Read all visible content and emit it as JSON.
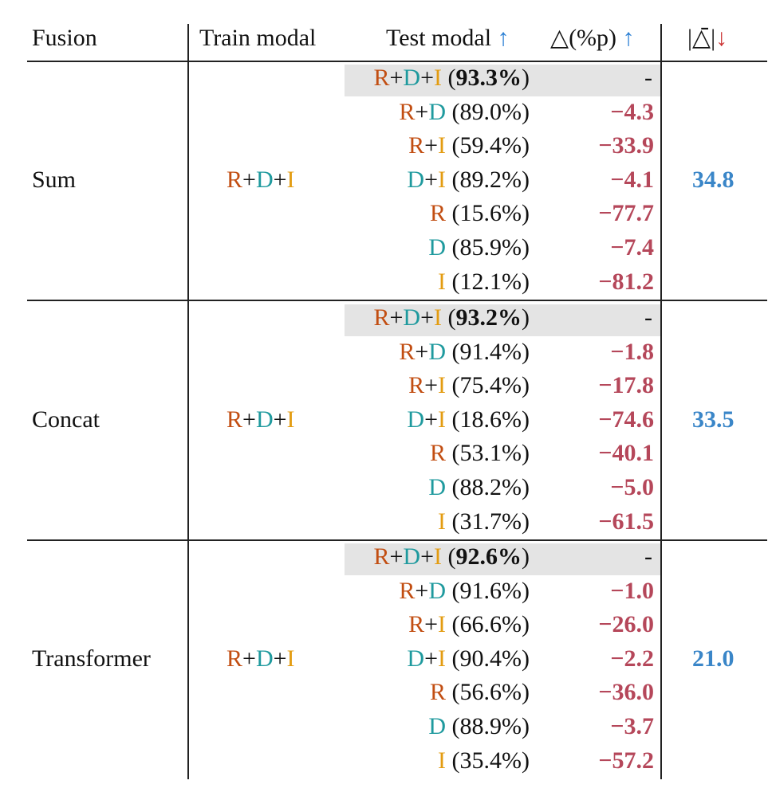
{
  "header": {
    "fusion": "Fusion",
    "train": "Train modal",
    "test": "Test modal",
    "test_arrow": "↑",
    "delta": "△(%p)",
    "delta_arrow": "↑",
    "avg": "|△̄|",
    "avg_arrow": "↓"
  },
  "colors": {
    "R": "#c24e12",
    "D": "#1f9a9e",
    "I": "#e39c11",
    "delta": "#b5475a",
    "avg": "#3a86c8"
  },
  "groups": [
    {
      "fusion": "Sum",
      "train": "R+D+I",
      "avg": "34.8",
      "rows": [
        {
          "modal": "R+D+I",
          "acc": "93.3%",
          "delta": "-"
        },
        {
          "modal": "R+D",
          "acc": "89.0%",
          "delta": "−4.3"
        },
        {
          "modal": "R+I",
          "acc": "59.4%",
          "delta": "−33.9"
        },
        {
          "modal": "D+I",
          "acc": "89.2%",
          "delta": "−4.1"
        },
        {
          "modal": "R",
          "acc": "15.6%",
          "delta": "−77.7"
        },
        {
          "modal": "D",
          "acc": "85.9%",
          "delta": "−7.4"
        },
        {
          "modal": "I",
          "acc": "12.1%",
          "delta": "−81.2"
        }
      ]
    },
    {
      "fusion": "Concat",
      "train": "R+D+I",
      "avg": "33.5",
      "rows": [
        {
          "modal": "R+D+I",
          "acc": "93.2%",
          "delta": "-"
        },
        {
          "modal": "R+D",
          "acc": "91.4%",
          "delta": "−1.8"
        },
        {
          "modal": "R+I",
          "acc": "75.4%",
          "delta": "−17.8"
        },
        {
          "modal": "D+I",
          "acc": "18.6%",
          "delta": "−74.6"
        },
        {
          "modal": "R",
          "acc": "53.1%",
          "delta": "−40.1"
        },
        {
          "modal": "D",
          "acc": "88.2%",
          "delta": "−5.0"
        },
        {
          "modal": "I",
          "acc": "31.7%",
          "delta": "−61.5"
        }
      ]
    },
    {
      "fusion": "Transformer",
      "train": "R+D+I",
      "avg": "21.0",
      "rows": [
        {
          "modal": "R+D+I",
          "acc": "92.6%",
          "delta": "-"
        },
        {
          "modal": "R+D",
          "acc": "91.6%",
          "delta": "−1.0"
        },
        {
          "modal": "R+I",
          "acc": "66.6%",
          "delta": "−26.0"
        },
        {
          "modal": "D+I",
          "acc": "90.4%",
          "delta": "−2.2"
        },
        {
          "modal": "R",
          "acc": "56.6%",
          "delta": "−36.0"
        },
        {
          "modal": "D",
          "acc": "88.9%",
          "delta": "−3.7"
        },
        {
          "modal": "I",
          "acc": "35.4%",
          "delta": "−57.2"
        }
      ]
    }
  ]
}
